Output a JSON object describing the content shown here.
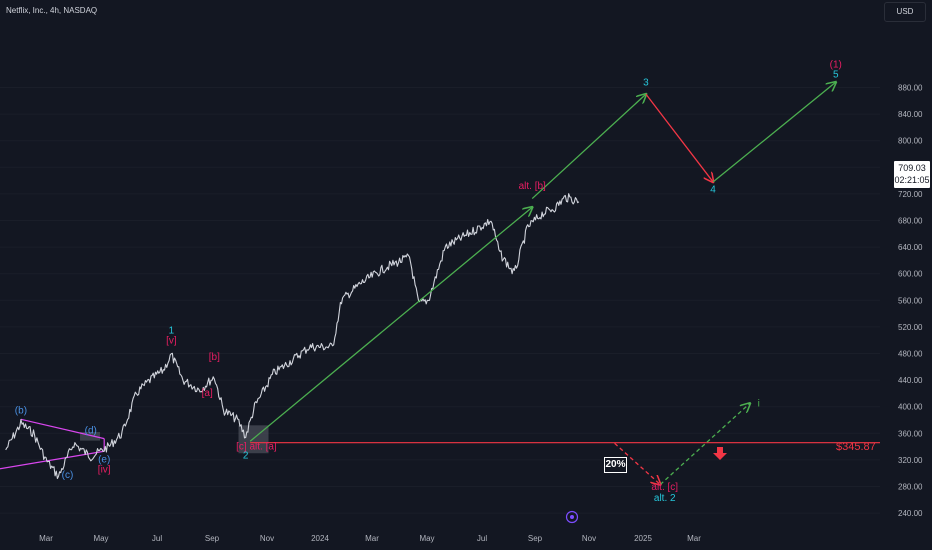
{
  "header": {
    "symbol": "Netflix, Inc., 4h, NASDAQ",
    "currency": "USD"
  },
  "price_tag": {
    "price": "709.03",
    "countdown": "02:21:05"
  },
  "probability_label": "20%",
  "target_label": "$345.87",
  "chart_data": {
    "type": "line",
    "ylim": [
      220,
      920
    ],
    "y_ticks": [
      240,
      280,
      320,
      360,
      400,
      440,
      480,
      520,
      560,
      600,
      640,
      680,
      720,
      760,
      800,
      840,
      880
    ],
    "x_tick_labels": [
      "Mar",
      "May",
      "Jul",
      "Sep",
      "Nov",
      "2024",
      "Mar",
      "May",
      "Jul",
      "Sep",
      "Nov",
      "2025",
      "Mar"
    ],
    "support_level": 345.87,
    "price_series": [
      {
        "x": "2023-01-15",
        "y": 335
      },
      {
        "x": "2023-02-01",
        "y": 375
      },
      {
        "x": "2023-02-15",
        "y": 360
      },
      {
        "x": "2023-03-01",
        "y": 320
      },
      {
        "x": "2023-03-15",
        "y": 295
      },
      {
        "x": "2023-04-01",
        "y": 345
      },
      {
        "x": "2023-04-15",
        "y": 330
      },
      {
        "x": "2023-04-20",
        "y": 325
      },
      {
        "x": "2023-05-10",
        "y": 340
      },
      {
        "x": "2023-05-25",
        "y": 360
      },
      {
        "x": "2023-06-10",
        "y": 420
      },
      {
        "x": "2023-06-25",
        "y": 440
      },
      {
        "x": "2023-07-10",
        "y": 455
      },
      {
        "x": "2023-07-19",
        "y": 478
      },
      {
        "x": "2023-08-01",
        "y": 440
      },
      {
        "x": "2023-08-20",
        "y": 425
      },
      {
        "x": "2023-09-05",
        "y": 445
      },
      {
        "x": "2023-09-15",
        "y": 395
      },
      {
        "x": "2023-10-01",
        "y": 380
      },
      {
        "x": "2023-10-10",
        "y": 355
      },
      {
        "x": "2023-10-20",
        "y": 400
      },
      {
        "x": "2023-11-10",
        "y": 450
      },
      {
        "x": "2023-12-01",
        "y": 470
      },
      {
        "x": "2023-12-20",
        "y": 490
      },
      {
        "x": "2024-01-15",
        "y": 490
      },
      {
        "x": "2024-01-25",
        "y": 560
      },
      {
        "x": "2024-02-15",
        "y": 585
      },
      {
        "x": "2024-03-15",
        "y": 610
      },
      {
        "x": "2024-04-10",
        "y": 625
      },
      {
        "x": "2024-04-20",
        "y": 555
      },
      {
        "x": "2024-05-01",
        "y": 560
      },
      {
        "x": "2024-05-20",
        "y": 640
      },
      {
        "x": "2024-06-15",
        "y": 660
      },
      {
        "x": "2024-07-10",
        "y": 680
      },
      {
        "x": "2024-07-20",
        "y": 630
      },
      {
        "x": "2024-08-05",
        "y": 600
      },
      {
        "x": "2024-08-20",
        "y": 670
      },
      {
        "x": "2024-09-05",
        "y": 690
      },
      {
        "x": "2024-09-20",
        "y": 700
      },
      {
        "x": "2024-10-01",
        "y": 715
      },
      {
        "x": "2024-10-16",
        "y": 709
      }
    ],
    "projections": [
      {
        "color": "#4caf50",
        "style": "solid",
        "points": [
          {
            "x": "2023-10-15",
            "y": 348
          },
          {
            "x": "2024-08-25",
            "y": 700
          }
        ]
      },
      {
        "color": "#4caf50",
        "style": "solid",
        "points": [
          {
            "x": "2024-08-25",
            "y": 713
          },
          {
            "x": "2024-12-30",
            "y": 870
          }
        ]
      },
      {
        "color": "#f23645",
        "style": "solid",
        "points": [
          {
            "x": "2024-12-30",
            "y": 870
          },
          {
            "x": "2025-03-15",
            "y": 738
          }
        ]
      },
      {
        "color": "#4caf50",
        "style": "solid",
        "points": [
          {
            "x": "2025-03-15",
            "y": 738
          },
          {
            "x": "2025-07-30",
            "y": 888
          }
        ]
      },
      {
        "color": "#f23645",
        "style": "dashed",
        "points": [
          {
            "x": "2024-11-25",
            "y": 345
          },
          {
            "x": "2025-01-15",
            "y": 283
          }
        ]
      },
      {
        "color": "#4caf50",
        "style": "dashed",
        "points": [
          {
            "x": "2025-01-15",
            "y": 283
          },
          {
            "x": "2025-04-25",
            "y": 405
          }
        ]
      }
    ],
    "triangle": [
      {
        "x": "2023-02-01",
        "y": 381
      },
      {
        "x": "2023-05-05",
        "y": 352
      },
      {
        "x": "2023-05-05",
        "y": 333
      },
      {
        "x": "2022-12-10",
        "y": 300
      }
    ],
    "wave_labels": [
      {
        "text": "(1)",
        "color": "#e91e63",
        "x": "2025-07-30",
        "y": 910
      },
      {
        "text": "5",
        "color": "#26c6da",
        "x": "2025-07-30",
        "y": 895
      },
      {
        "text": "3",
        "color": "#26c6da",
        "x": "2024-12-30",
        "y": 883
      },
      {
        "text": "4",
        "color": "#26c6da",
        "x": "2025-03-15",
        "y": 722
      },
      {
        "text": "alt. [b]",
        "color": "#e91e63",
        "x": "2024-08-25",
        "y": 727
      },
      {
        "text": "1",
        "color": "#26c6da",
        "x": "2023-07-19",
        "y": 510
      },
      {
        "text": "[v]",
        "color": "#e91e63",
        "x": "2023-07-19",
        "y": 495
      },
      {
        "text": "[b]",
        "color": "#e91e63",
        "x": "2023-09-05",
        "y": 470
      },
      {
        "text": "[a]",
        "color": "#e91e63",
        "x": "2023-08-28",
        "y": 416
      },
      {
        "text": "(b)",
        "color": "#4a90e2",
        "x": "2023-02-01",
        "y": 390
      },
      {
        "text": "(d)",
        "color": "#4a90e2",
        "x": "2023-04-20",
        "y": 360
      },
      {
        "text": "(c)",
        "color": "#4a90e2",
        "x": "2023-03-25",
        "y": 293
      },
      {
        "text": "(e)",
        "color": "#4a90e2",
        "x": "2023-05-05",
        "y": 316
      },
      {
        "text": "[iv]",
        "color": "#e91e63",
        "x": "2023-05-05",
        "y": 301
      },
      {
        "text": "[c] alt. [a]",
        "color": "#e91e63",
        "x": "2023-10-22",
        "y": 336
      },
      {
        "text": "2",
        "color": "#26c6da",
        "x": "2023-10-10",
        "y": 322
      },
      {
        "text": "alt. [c]",
        "color": "#e91e63",
        "x": "2025-01-20",
        "y": 275
      },
      {
        "text": "alt. 2",
        "color": "#26c6da",
        "x": "2025-01-20",
        "y": 258
      },
      {
        "text": "i",
        "color": "#4caf50",
        "x": "2025-05-05",
        "y": 400
      }
    ]
  }
}
